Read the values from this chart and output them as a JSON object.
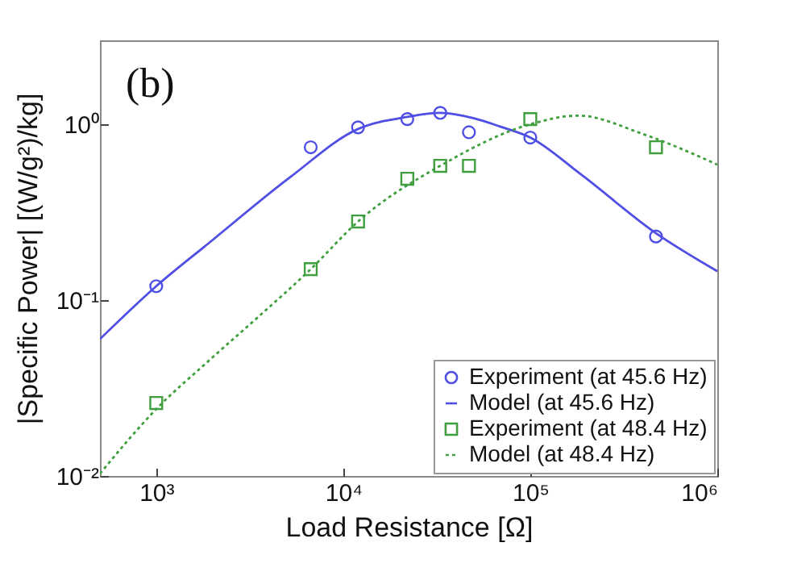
{
  "chart_data": {
    "type": "scatter",
    "xlabel": "Load Resistance [Ω]",
    "ylabel": "|Specific Power| [(W/g²)/kg]",
    "annotations": [
      "(b)"
    ],
    "log": "xy",
    "grid": false,
    "legend": "bottom right",
    "xlim": [
      500,
      1000000
    ],
    "xticks": [
      {
        "value": 1000,
        "label": "10³"
      },
      {
        "value": 10000,
        "label": "10⁴"
      },
      {
        "value": 100000,
        "label": "10⁵"
      },
      {
        "value": 1000000,
        "label": "10⁶"
      }
    ],
    "ylim": [
      0.01,
      3
    ],
    "yticks": [
      {
        "value": 0.01,
        "label": "10⁻²"
      },
      {
        "value": 0.1,
        "label": "10⁻¹"
      },
      {
        "value": 1,
        "label": "10⁰"
      }
    ],
    "series": [
      {
        "name": "Experiment (at 45.6 Hz)",
        "marker": "circle",
        "color": "#4f4fe6",
        "x": [
          1000,
          6700,
          12000,
          22000,
          33000,
          47000,
          100000,
          470000
        ],
        "values": [
          0.12,
          0.74,
          0.96,
          1.07,
          1.16,
          0.9,
          0.84,
          0.23
        ]
      },
      {
        "name": "Model (at 45.6 Hz)",
        "type": "line",
        "line_style": "solid",
        "color": "#4f4fe6",
        "x": [
          500,
          1000,
          1900,
          5200,
          12000,
          22000,
          33000,
          50000,
          69000,
          100000,
          186000,
          470000,
          1000000
        ],
        "values": [
          0.06,
          0.12,
          0.21,
          0.5,
          0.94,
          1.1,
          1.16,
          1.08,
          0.97,
          0.84,
          0.52,
          0.24,
          0.146
        ]
      },
      {
        "name": "Experiment (at 48.4 Hz)",
        "marker": "square",
        "color": "#3f9f3f",
        "x": [
          1000,
          6700,
          12000,
          22000,
          33000,
          47000,
          100000,
          470000
        ],
        "values": [
          0.026,
          0.15,
          0.28,
          0.49,
          0.58,
          0.58,
          1.07,
          0.74
        ]
      },
      {
        "name": "Model (at 48.4 Hz)",
        "type": "line",
        "line_style": "dotted",
        "color": "#3f9f3f",
        "x": [
          500,
          1000,
          1900,
          3500,
          6700,
          12000,
          33000,
          100000,
          180000,
          400000,
          1000000
        ],
        "values": [
          0.0103,
          0.024,
          0.045,
          0.08,
          0.15,
          0.28,
          0.58,
          1.0,
          1.12,
          0.88,
          0.59
        ]
      }
    ]
  }
}
